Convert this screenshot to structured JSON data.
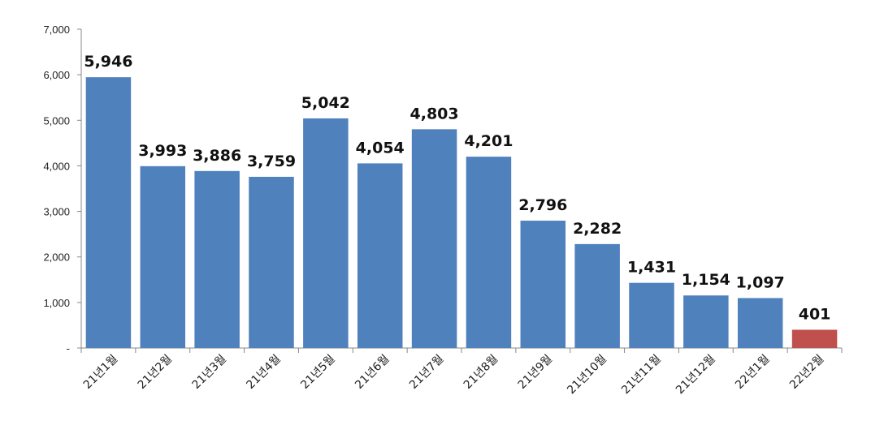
{
  "chart_data": {
    "type": "bar",
    "categories": [
      "21년1월",
      "21년2월",
      "21년3월",
      "21년4월",
      "21년5월",
      "21년6월",
      "21년7월",
      "21년8월",
      "21년9월",
      "21년10월",
      "21년11월",
      "21년12월",
      "22년1월",
      "22년2월"
    ],
    "values": [
      5946,
      3993,
      3886,
      3759,
      5042,
      4054,
      4803,
      4201,
      2796,
      2282,
      1431,
      1154,
      1097,
      401
    ],
    "data_labels": [
      "5,946",
      "3,993",
      "3,886",
      "3,759",
      "5,042",
      "4,054",
      "4,803",
      "4,201",
      "2,796",
      "2,282",
      "1,431",
      "1,154",
      "1,097",
      "401"
    ],
    "y_ticks": [
      0,
      1000,
      2000,
      3000,
      4000,
      5000,
      6000,
      7000
    ],
    "y_tick_labels": [
      "-",
      "1,000",
      "2,000",
      "3,000",
      "4,000",
      "5,000",
      "6,000",
      "7,000"
    ],
    "ylim": [
      0,
      7000
    ],
    "title": "",
    "xlabel": "",
    "ylabel": "",
    "grid": false,
    "colors": {
      "default": "#4F81BD",
      "highlight": "#C0504D"
    },
    "highlight_index": 13
  }
}
